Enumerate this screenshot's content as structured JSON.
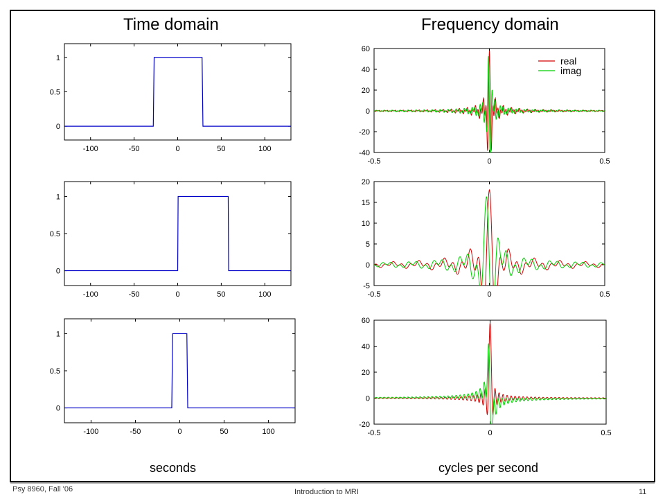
{
  "headings": {
    "left": "Time domain",
    "right": "Frequency domain"
  },
  "x_units": {
    "left": "seconds",
    "right": "cycles per second"
  },
  "footer": {
    "course": "Psy 8960, Fall '06",
    "title": "Introduction to MRI",
    "page": "11"
  },
  "colors": {
    "rect": "#0000c8",
    "real": "#d40000",
    "imag": "#00d000",
    "frame": "#000000"
  },
  "chart_data": [
    {
      "type": "line",
      "panel": "time-1",
      "x": [
        -130,
        -28,
        -27,
        28,
        29,
        130
      ],
      "y": [
        0,
        0,
        1,
        1,
        0,
        0
      ],
      "xlim": [
        -130,
        130
      ],
      "ylim": [
        -0.2,
        1.2
      ],
      "xticks": [
        -100,
        -50,
        0,
        50,
        100
      ],
      "yticks": [
        0,
        0.5,
        1
      ],
      "xticklabels": [
        "-100",
        "-50",
        "0",
        "50",
        "100"
      ],
      "yticklabels": [
        "0",
        "0.5",
        "1"
      ]
    },
    {
      "type": "line",
      "panel": "time-2",
      "x": [
        -130,
        0,
        0.5,
        58,
        58.5,
        130
      ],
      "y": [
        0,
        0,
        1,
        1,
        0,
        0
      ],
      "xlim": [
        -130,
        130
      ],
      "ylim": [
        -0.2,
        1.2
      ],
      "xticks": [
        -100,
        -50,
        0,
        50,
        100
      ],
      "yticks": [
        0,
        0.5,
        1
      ],
      "xticklabels": [
        "-100",
        "-50",
        "0",
        "50",
        "100"
      ],
      "yticklabels": [
        "0",
        "0.5",
        "1"
      ]
    },
    {
      "type": "line",
      "panel": "time-3",
      "x": [
        -130,
        -9,
        -8,
        8,
        9,
        130
      ],
      "y": [
        0,
        0,
        1,
        1,
        0,
        0
      ],
      "xlim": [
        -130,
        130
      ],
      "ylim": [
        -0.2,
        1.2
      ],
      "xticks": [
        -100,
        -50,
        0,
        50,
        100
      ],
      "yticks": [
        0,
        0.5,
        1
      ],
      "xticklabels": [
        "-100",
        "-50",
        "0",
        "50",
        "100"
      ],
      "yticklabels": [
        "0",
        "0.5",
        "1"
      ]
    },
    {
      "type": "line",
      "panel": "freq-1",
      "width": 58,
      "shift": 28.5,
      "series": [
        {
          "name": "real",
          "part": "real"
        },
        {
          "name": "imag",
          "part": "imag"
        }
      ],
      "legend": {
        "entries": [
          "real",
          "imag"
        ],
        "placement": "top-right"
      },
      "xlim": [
        -0.5,
        0.5
      ],
      "ylim": [
        -40,
        60
      ],
      "xticks": [
        -0.5,
        0,
        0.5
      ],
      "yticks": [
        -40,
        -20,
        0,
        20,
        40,
        60
      ],
      "xticklabels": [
        "-0.5",
        "0",
        "0.5"
      ],
      "yticklabels": [
        "-40",
        "-20",
        "0",
        "20",
        "40",
        "60"
      ]
    },
    {
      "type": "line",
      "panel": "freq-2",
      "width": 18,
      "shift": 9,
      "series": [
        {
          "part": "real"
        },
        {
          "part": "imag"
        }
      ],
      "xlim": [
        -0.5,
        0.5
      ],
      "ylim": [
        -5,
        20
      ],
      "xticks": [
        -0.5,
        0,
        0.5
      ],
      "yticks": [
        -5,
        0,
        5,
        10,
        15,
        20
      ],
      "xticklabels": [
        "-0.5",
        "0",
        "0.5"
      ],
      "yticklabels": [
        "-5",
        "0",
        "5",
        "10",
        "15",
        "20"
      ]
    },
    {
      "type": "line",
      "panel": "freq-3",
      "width": 58,
      "shift": 0,
      "series": [
        {
          "part": "real"
        },
        {
          "part": "imag"
        }
      ],
      "xlim": [
        -0.5,
        0.5
      ],
      "ylim": [
        -20,
        60
      ],
      "xticks": [
        -0.5,
        0,
        0.5
      ],
      "yticks": [
        -20,
        0,
        20,
        40,
        60
      ],
      "xticklabels": [
        "-0.5",
        "0",
        "0.5"
      ],
      "yticklabels": [
        "-20",
        "0",
        "20",
        "40",
        "60"
      ]
    }
  ]
}
